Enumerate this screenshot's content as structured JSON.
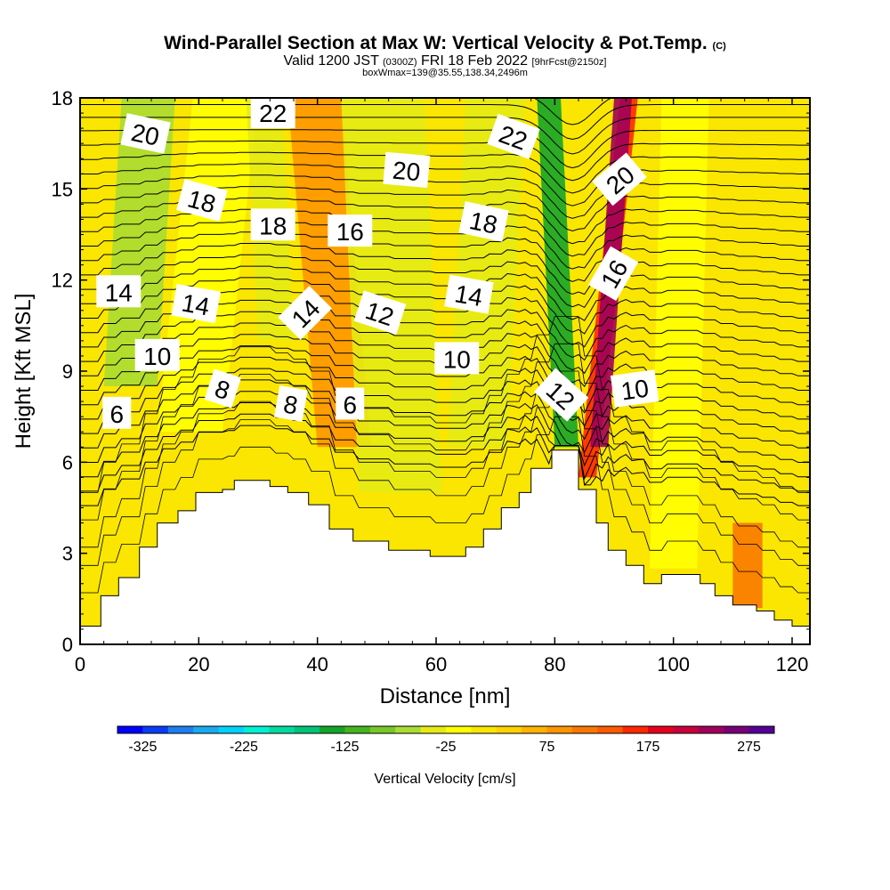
{
  "title": {
    "main": "Wind-Parallel Section at Max W: Vertical Velocity & Pot.Temp.",
    "main_mark": "(C)",
    "valid_prefix": "Valid 1200 JST",
    "valid_utc": "(0300Z)",
    "valid_date": "FRI 18 Feb 2022",
    "forecast": "[9hrFcst@2150z]",
    "box_info": "boxWmax=139@35.55,138.34,2496m"
  },
  "chart_data": {
    "type": "heatmap",
    "xlabel": "Distance [nm]",
    "ylabel": "Height [Kft MSL]",
    "xlim": [
      0,
      123
    ],
    "ylim": [
      0,
      18
    ],
    "x_ticks": [
      "0",
      "20",
      "40",
      "60",
      "80",
      "100",
      "120"
    ],
    "y_ticks": [
      "0",
      "3",
      "6",
      "9",
      "12",
      "15",
      "18"
    ],
    "colorbar": {
      "label": "Vertical Velocity [cm/s]",
      "tick_labels": [
        "-325",
        "-225",
        "-125",
        "-25",
        "75",
        "175",
        "275"
      ],
      "min": -350,
      "max": 300,
      "step": 25,
      "colors": [
        "#0000ff",
        "#0b3cf5",
        "#1e7ef0",
        "#19aaf0",
        "#00d2ff",
        "#00f0d2",
        "#00dca0",
        "#00c378",
        "#14a528",
        "#46b41e",
        "#78c828",
        "#aadc32",
        "#e6eb14",
        "#ffff00",
        "#fae600",
        "#ffd200",
        "#ffb400",
        "#ff9600",
        "#fa7800",
        "#ff5a00",
        "#ff2800",
        "#e6001e",
        "#c8003c",
        "#a0005a",
        "#780078",
        "#550096"
      ]
    },
    "terrain": [
      [
        0,
        0.6
      ],
      [
        3.5,
        1.6
      ],
      [
        6.5,
        2.2
      ],
      [
        10,
        3.2
      ],
      [
        13,
        4.0
      ],
      [
        16.5,
        4.4
      ],
      [
        19.5,
        5.0
      ],
      [
        24,
        5.1
      ],
      [
        26,
        5.4
      ],
      [
        32,
        5.2
      ],
      [
        35,
        5.0
      ],
      [
        38.5,
        4.6
      ],
      [
        42,
        3.8
      ],
      [
        46,
        3.4
      ],
      [
        52,
        3.1
      ],
      [
        59,
        2.9
      ],
      [
        65,
        3.2
      ],
      [
        68,
        3.8
      ],
      [
        71,
        4.5
      ],
      [
        74,
        5.0
      ],
      [
        76,
        5.8
      ],
      [
        79.5,
        6.4
      ],
      [
        84,
        5.1
      ],
      [
        87,
        4.0
      ],
      [
        89,
        3.1
      ],
      [
        92,
        2.6
      ],
      [
        95,
        2.0
      ],
      [
        98,
        2.3
      ],
      [
        104.5,
        2.0
      ],
      [
        107,
        1.6
      ],
      [
        110,
        1.3
      ],
      [
        114,
        1.1
      ],
      [
        117,
        0.8
      ],
      [
        120,
        0.6
      ],
      [
        123,
        0.6
      ]
    ],
    "wind_fields": [
      {
        "x": 4,
        "w": 9,
        "base": 8.5,
        "top": 18,
        "tilt": 3,
        "velocity": -75
      },
      {
        "x": 13,
        "w": 11,
        "base": 7,
        "top": 18,
        "tilt": 6,
        "velocity": -25
      },
      {
        "x": 30,
        "w": 6,
        "base": 10,
        "top": 18,
        "tilt": -2,
        "velocity": -50
      },
      {
        "x": 40,
        "w": 9,
        "base": 6.5,
        "top": 18,
        "tilt": -5,
        "velocity": 75
      },
      {
        "x": 47,
        "w": 14,
        "base": 5,
        "top": 18,
        "tilt": -3,
        "velocity": -50
      },
      {
        "x": 62,
        "w": 10,
        "base": 6.5,
        "top": 18,
        "tilt": 3,
        "velocity": -50
      },
      {
        "x": 80,
        "w": 4,
        "base": 6.5,
        "top": 18,
        "tilt": -3,
        "velocity": -150
      },
      {
        "x": 84,
        "w": 3,
        "base": 5.5,
        "top": 18,
        "tilt": 7,
        "velocity": 150
      },
      {
        "x": 86,
        "w": 3,
        "base": 6.5,
        "top": 18,
        "tilt": 4,
        "velocity": 225
      },
      {
        "x": 96,
        "w": 8,
        "base": 2.5,
        "top": 18,
        "tilt": 2,
        "velocity": -25
      },
      {
        "x": 110,
        "w": 5,
        "base": 1.2,
        "top": 4,
        "tilt": 0,
        "velocity": 100
      }
    ],
    "isentropes": [
      6,
      8,
      10,
      12,
      14,
      16,
      18,
      20,
      22
    ],
    "contour_labels": [
      {
        "text": "20",
        "x": 11,
        "y": 16.8,
        "angle": 12
      },
      {
        "text": "22",
        "x": 32.5,
        "y": 17.5,
        "angle": 0
      },
      {
        "text": "18",
        "x": 20.5,
        "y": 14.6,
        "angle": 15
      },
      {
        "text": "20",
        "x": 55,
        "y": 15.6,
        "angle": 5
      },
      {
        "text": "22",
        "x": 73,
        "y": 16.7,
        "angle": 20
      },
      {
        "text": "20",
        "x": 91,
        "y": 15.3,
        "angle": -40
      },
      {
        "text": "18",
        "x": 32.5,
        "y": 13.8,
        "angle": 0
      },
      {
        "text": "16",
        "x": 45.5,
        "y": 13.6,
        "angle": 0
      },
      {
        "text": "18",
        "x": 68,
        "y": 13.9,
        "angle": 12
      },
      {
        "text": "16",
        "x": 90,
        "y": 12.2,
        "angle": -60
      },
      {
        "text": "14",
        "x": 6.5,
        "y": 11.6,
        "angle": 0
      },
      {
        "text": "14",
        "x": 19.5,
        "y": 11.2,
        "angle": 10
      },
      {
        "text": "14",
        "x": 38,
        "y": 10.9,
        "angle": -45
      },
      {
        "text": "12",
        "x": 50.5,
        "y": 10.9,
        "angle": 18
      },
      {
        "text": "14",
        "x": 65.5,
        "y": 11.5,
        "angle": 10
      },
      {
        "text": "10",
        "x": 13,
        "y": 9.5,
        "angle": 0
      },
      {
        "text": "10",
        "x": 63.5,
        "y": 9.4,
        "angle": 0
      },
      {
        "text": "12",
        "x": 81,
        "y": 8.2,
        "angle": 42
      },
      {
        "text": "10",
        "x": 93.5,
        "y": 8.4,
        "angle": -8
      },
      {
        "text": "8",
        "x": 24,
        "y": 8.4,
        "angle": 18
      },
      {
        "text": "8",
        "x": 35.5,
        "y": 7.9,
        "angle": 10
      },
      {
        "text": "6",
        "x": 45.5,
        "y": 7.9,
        "angle": 0
      },
      {
        "text": "6",
        "x": 6.2,
        "y": 7.6,
        "angle": 0
      }
    ]
  }
}
